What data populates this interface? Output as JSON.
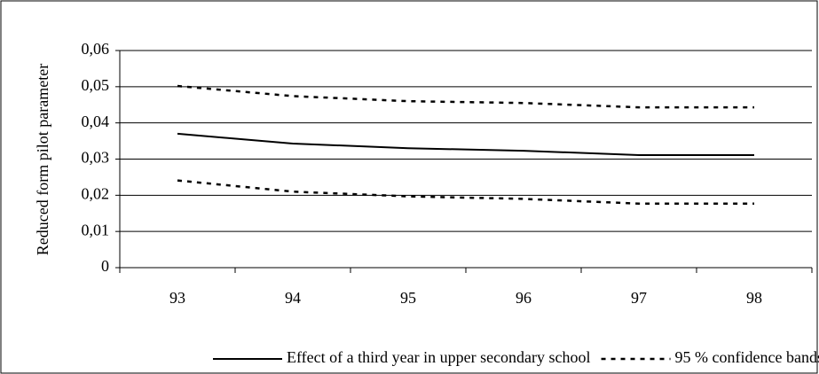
{
  "chart_data": {
    "type": "line",
    "y_label": "Reduced form pilot parameter",
    "categories": [
      "93",
      "94",
      "95",
      "96",
      "97",
      "98"
    ],
    "series": [
      {
        "name": "Effect of a third year in upper secondary school",
        "color": "#000000",
        "dash": "solid",
        "values": [
          0.037,
          0.0343,
          0.033,
          0.0323,
          0.0311,
          0.0311
        ]
      },
      {
        "name": "95 % confidence bands",
        "color": "#000000",
        "dash": "dashed",
        "values": [
          0.0502,
          0.0474,
          0.046,
          0.0455,
          0.0443,
          0.0443
        ]
      },
      {
        "color": "#000000",
        "dash": "dashed",
        "values": [
          0.0241,
          0.021,
          0.0197,
          0.019,
          0.0177,
          0.0177
        ]
      }
    ],
    "ylim": [
      0,
      0.06
    ],
    "yticks": [
      0,
      {
        "value": 0.01,
        "label": "0,01"
      },
      {
        "value": 0.02,
        "label": "0,02"
      },
      {
        "value": 0.03,
        "label": "0,03"
      },
      {
        "value": 0.04,
        "label": "0,04"
      },
      {
        "value": 0.05,
        "label": "0,05"
      },
      {
        "value": 0.06,
        "label": "0,06"
      }
    ],
    "grid": true
  }
}
